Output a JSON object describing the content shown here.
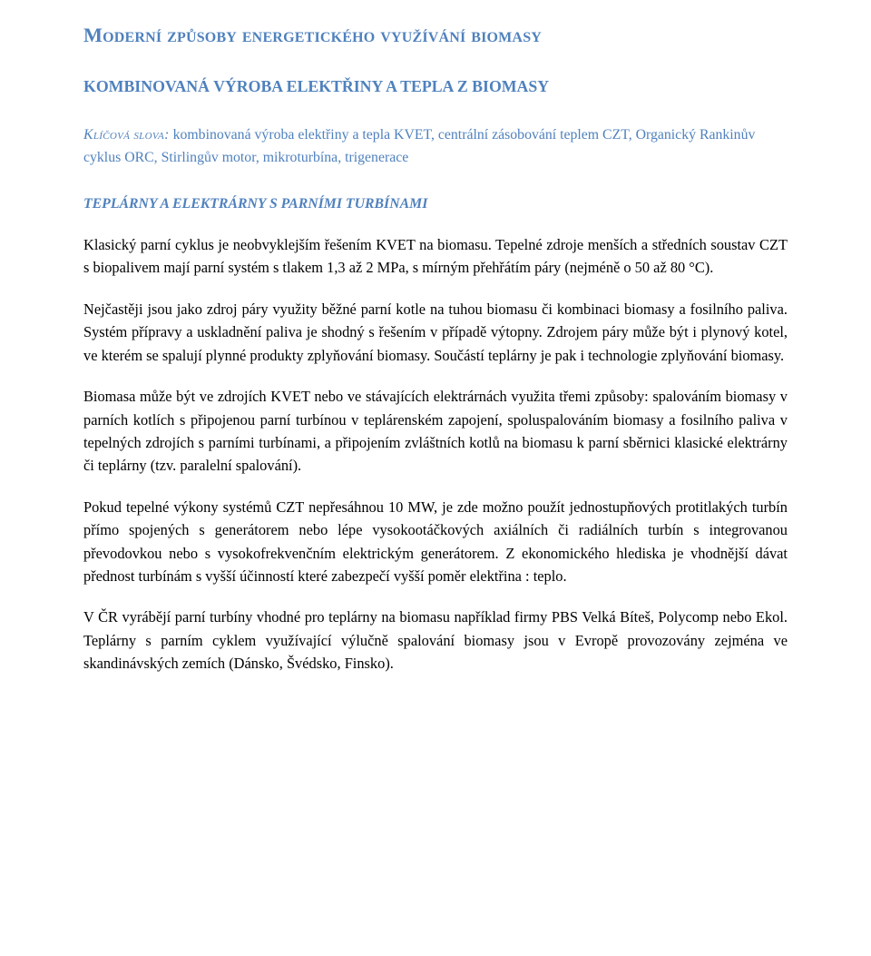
{
  "colors": {
    "accent": "#4f81bd",
    "text": "#000000",
    "background": "#ffffff"
  },
  "typography": {
    "body_family": "Times New Roman",
    "body_size_pt": 12,
    "h1_size_pt": 17,
    "h2_size_pt": 13.5,
    "h3_size_pt": 12,
    "line_height": 1.55
  },
  "h1": "Moderní způsoby energetického využívání biomasy",
  "h2": "KOMBINOVANÁ VÝROBA ELEKTŘINY A TEPLA Z BIOMASY",
  "keywords": {
    "label": "Klíčová slova:",
    "text": "kombinovaná výroba elektřiny a tepla KVET, centrální zásobování teplem CZT, Organický Rankinův cyklus ORC, Stirlingův motor, mikroturbína, trigenerace"
  },
  "h3": "TEPLÁRNY A ELEKTRÁRNY S PARNÍMI TURBÍNAMI",
  "paragraphs": {
    "p1": "Klasický parní cyklus je neobvyklejším řešením KVET na biomasu. Tepelné zdroje menších a středních soustav CZT s biopalivem mají parní systém s tlakem 1,3 až 2 MPa, s mírným přehřátím páry (nejméně o 50 až 80 °C).",
    "p2": "Nejčastěji jsou jako zdroj páry využity běžné parní kotle na tuhou biomasu či kombinaci biomasy a fosilního paliva. Systém přípravy a uskladnění paliva je shodný s řešením v případě výtopny. Zdrojem páry může být i plynový kotel, ve kterém se spalují plynné produkty zplyňování biomasy. Součástí teplárny je pak i technologie zplyňování biomasy.",
    "p3": "Biomasa může být ve zdrojích KVET nebo ve stávajících elektrárnách využita třemi způsoby: spalováním biomasy v parních kotlích s připojenou parní turbínou v teplárenském zapojení, spoluspalováním biomasy a fosilního paliva v tepelných zdrojích s parními turbínami, a připojením zvláštních kotlů na biomasu k parní sběrnici  klasické elektrárny či teplárny (tzv. paralelní spalování).",
    "p4": "Pokud tepelné výkony systémů CZT nepřesáhnou 10 MW, je zde možno použít jednostupňových protitlakých turbín přímo spojených s generátorem nebo lépe vysokootáčkových axiálních či radiálních turbín s integrovanou převodovkou nebo s vysokofrekvenčním elektrickým generátorem. Z ekonomického hlediska je vhodnější dávat přednost turbínám s vyšší účinností které zabezpečí vyšší poměr elektřina : teplo.",
    "p5": "V ČR  vyrábějí parní turbíny vhodné pro teplárny na biomasu například firmy PBS Velká Bíteš, Polycomp nebo Ekol. Teplárny s parním cyklem využívající výlučně spalování biomasy jsou v Evropě provozovány zejména ve skandinávských zemích (Dánsko, Švédsko, Finsko)."
  }
}
